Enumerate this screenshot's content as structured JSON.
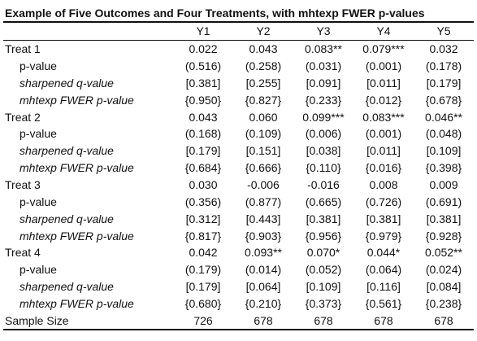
{
  "title": "Example of Five Outcomes and Four Treatments, with mhtexp FWER p-values",
  "columns": [
    "",
    "Y1",
    "Y2",
    "Y3",
    "Y4",
    "Y5"
  ],
  "rows": [
    {
      "label": "Treat 1",
      "kind": "treat",
      "values": [
        "0.022",
        "0.043",
        "0.083**",
        "0.079***",
        "0.032"
      ]
    },
    {
      "label": "p-value",
      "kind": "sub",
      "values": [
        "(0.516)",
        "(0.258)",
        "(0.031)",
        "(0.001)",
        "(0.178)"
      ]
    },
    {
      "label": "sharpened q-value",
      "kind": "sub-italic",
      "values": [
        "[0.381]",
        "[0.255]",
        "[0.091]",
        "[0.011]",
        "[0.179]"
      ]
    },
    {
      "label": "mhtexp FWER p-value",
      "kind": "sub-italic",
      "values": [
        "{0.950}",
        "{0.827}",
        "{0.233}",
        "{0.012}",
        "{0.678}"
      ]
    },
    {
      "label": "Treat 2",
      "kind": "treat",
      "values": [
        "0.043",
        "0.060",
        "0.099***",
        "0.083***",
        "0.046**"
      ]
    },
    {
      "label": "p-value",
      "kind": "sub",
      "values": [
        "(0.168)",
        "(0.109)",
        "(0.006)",
        "(0.001)",
        "(0.048)"
      ]
    },
    {
      "label": "sharpened q-value",
      "kind": "sub-italic",
      "values": [
        "[0.179]",
        "[0.151]",
        "[0.038]",
        "[0.011]",
        "[0.109]"
      ]
    },
    {
      "label": "mhtexp FWER p-value",
      "kind": "sub-italic",
      "values": [
        "{0.684}",
        "{0.666}",
        "{0.110}",
        "{0.016}",
        "{0.398}"
      ]
    },
    {
      "label": "Treat 3",
      "kind": "treat",
      "values": [
        "0.030",
        "-0.006",
        "-0.016",
        "0.008",
        "0.009"
      ]
    },
    {
      "label": "p-value",
      "kind": "sub",
      "values": [
        "(0.356)",
        "(0.877)",
        "(0.665)",
        "(0.726)",
        "(0.691)"
      ]
    },
    {
      "label": "sharpened q-value",
      "kind": "sub-italic",
      "values": [
        "[0.312]",
        "[0.443]",
        "[0.381]",
        "[0.381]",
        "[0.381]"
      ]
    },
    {
      "label": "mhtexp FWER p-value",
      "kind": "sub-italic",
      "values": [
        "{0.817}",
        "{0.903}",
        "{0.956}",
        "{0.979}",
        "{0.928}"
      ]
    },
    {
      "label": "Treat 4",
      "kind": "treat",
      "values": [
        "0.042",
        "0.093**",
        "0.070*",
        "0.044*",
        "0.052**"
      ]
    },
    {
      "label": "p-value",
      "kind": "sub",
      "values": [
        "(0.179)",
        "(0.014)",
        "(0.052)",
        "(0.064)",
        "(0.024)"
      ]
    },
    {
      "label": "sharpened q-value",
      "kind": "sub-italic",
      "values": [
        "[0.179]",
        "[0.064]",
        "[0.109]",
        "[0.116]",
        "[0.084]"
      ]
    },
    {
      "label": "mhtexp FWER p-value",
      "kind": "sub-italic",
      "values": [
        "{0.680}",
        "{0.210}",
        "{0.373}",
        "{0.561}",
        "{0.238}"
      ]
    },
    {
      "label": "Sample Size",
      "kind": "treat",
      "values": [
        "726",
        "678",
        "678",
        "678",
        "678"
      ]
    }
  ]
}
